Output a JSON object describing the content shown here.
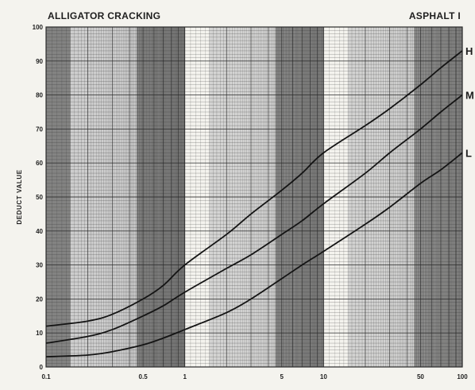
{
  "header": {
    "title_left": "ALLIGATOR CRACKING",
    "title_right": "ASPHALT I"
  },
  "colors": {
    "paper": "#f4f3ee",
    "dark_band": "#6e6e6e",
    "light_band": "#c9c9c9",
    "grid": "#2a2a2a",
    "curve": "#141414",
    "text": "#1e1e1e"
  },
  "chart_data": {
    "type": "line",
    "title": "ALLIGATOR CRACKING",
    "subtitle": "ASPHALT I",
    "xlabel": "",
    "ylabel": "DEDUCT VALUE",
    "x_scale": "log",
    "xlim": [
      0.1,
      100
    ],
    "ylim": [
      0,
      100
    ],
    "grid": true,
    "x_tick_values": [
      0.1,
      0.5,
      1,
      5,
      10,
      50,
      100
    ],
    "x_tick_labels": [
      "0.1",
      "0.5",
      "1",
      "5",
      "10",
      "50",
      "100"
    ],
    "y_tick_values": [
      0,
      10,
      20,
      30,
      40,
      50,
      60,
      70,
      80,
      90,
      100
    ],
    "y_tick_labels": [
      "0",
      "10",
      "20",
      "30",
      "40",
      "50",
      "60",
      "70",
      "80",
      "90",
      "100"
    ],
    "series": [
      {
        "name": "H",
        "x": [
          0.1,
          0.2,
          0.3,
          0.5,
          0.7,
          1,
          2,
          3,
          5,
          7,
          10,
          20,
          30,
          50,
          70,
          100
        ],
        "y": [
          12,
          13.5,
          15.5,
          20,
          24,
          30,
          39,
          45,
          52,
          57,
          63,
          71,
          76,
          83,
          88,
          93
        ]
      },
      {
        "name": "M",
        "x": [
          0.1,
          0.2,
          0.3,
          0.5,
          0.7,
          1,
          2,
          3,
          5,
          7,
          10,
          20,
          30,
          50,
          70,
          100
        ],
        "y": [
          7,
          9,
          11,
          15,
          18,
          22,
          29,
          33,
          39,
          43,
          48,
          57,
          63,
          70,
          75,
          80
        ]
      },
      {
        "name": "L",
        "x": [
          0.1,
          0.2,
          0.3,
          0.5,
          0.7,
          1,
          2,
          3,
          5,
          7,
          10,
          20,
          30,
          50,
          70,
          100
        ],
        "y": [
          3,
          3.5,
          4.5,
          6.5,
          8.5,
          11,
          16,
          20,
          26,
          30,
          34,
          42,
          47,
          54,
          58,
          63
        ]
      }
    ]
  }
}
